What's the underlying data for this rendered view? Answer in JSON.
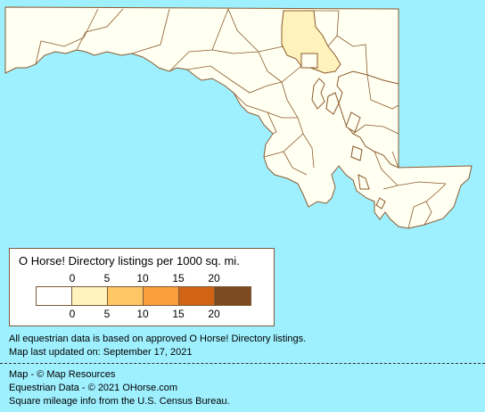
{
  "legend": {
    "title": "O Horse! Directory listings per 1000 sq. mi.",
    "top_ticks": [
      "0",
      "5",
      "10",
      "15",
      "20"
    ],
    "bottom_ticks": [
      "0",
      "5",
      "10",
      "15",
      "20"
    ],
    "colors": [
      "#ffffff",
      "#fff2bd",
      "#fdc766",
      "#fb9f3d",
      "#d06414",
      "#7c4a1f"
    ]
  },
  "map": {
    "ocean_color": "#9ff0ff",
    "land_color": "#fffff2",
    "highlight_color": "#fff2bd",
    "border_color": "#8b5a2b"
  },
  "notes": {
    "line1": "All equestrian data is based on approved O Horse! Directory listings.",
    "line2": "Map last updated on: September 17, 2021"
  },
  "credits": {
    "line1": "Map - © Map Resources",
    "line2": "Equestrian Data - © 2021 OHorse.com",
    "line3": "Square mileage info from the U.S. Census Bureau."
  }
}
